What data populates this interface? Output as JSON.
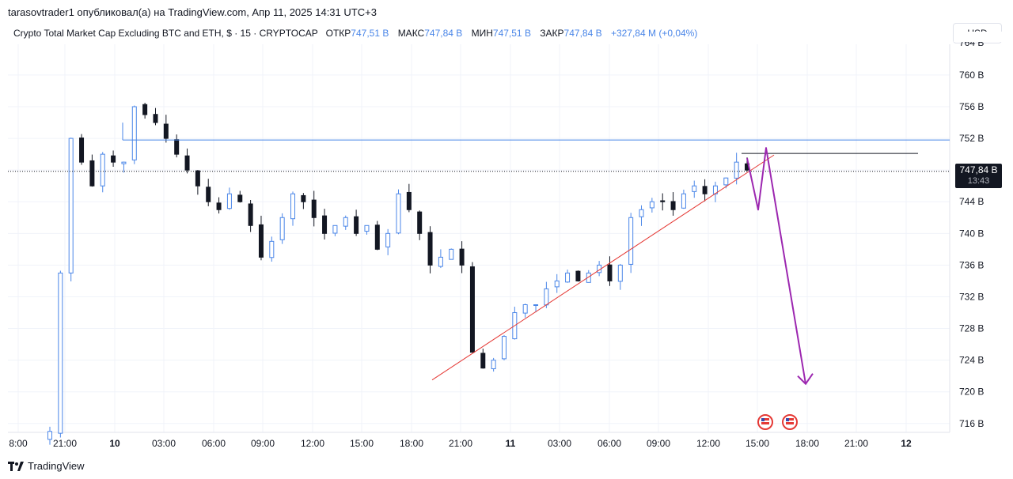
{
  "header": {
    "published": "tarasovtrader1 опубликовал(а) на TradingView.com, Апр 11, 2025 14:31 UTC+3"
  },
  "legend": {
    "symbol": "Crypto Total Market Cap Excluding BTC and ETH, $ · 15 · CRYPTOCAP",
    "open_label": "ОТКР",
    "open": "747,51 B",
    "high_label": "МАКС",
    "high": "747,84 B",
    "low_label": "МИН",
    "low": "747,51 B",
    "close_label": "ЗАКР",
    "close": "747,84 B",
    "change": "+327,84 M (+0,04%)"
  },
  "currency": "USD",
  "price_tag": {
    "price": "747,84 B",
    "countdown": "13:43"
  },
  "brand": "TradingView",
  "colors": {
    "up": "#4a86e8",
    "down": "#131722",
    "resistance": "#4a86e8",
    "trendline": "#e53935",
    "projection": "#9c27b0",
    "last_price_line": "#131722"
  },
  "chart_data": {
    "type": "candlestick",
    "interval": "15",
    "y_axis": {
      "ticks": [
        716,
        720,
        724,
        728,
        732,
        736,
        740,
        744,
        748,
        752,
        756,
        760
      ],
      "tick_labels": [
        "716 B",
        "720 B",
        "724 B",
        "728 B",
        "732 B",
        "736 B",
        "740 B",
        "744 B",
        "748 B",
        "752 B",
        "756 B",
        "760 B"
      ],
      "range": [
        714,
        764
      ],
      "unit": "B"
    },
    "x_axis": {
      "tick_labels": [
        "8:00",
        "21:00",
        "10",
        "03:00",
        "06:00",
        "09:00",
        "12:00",
        "15:00",
        "18:00",
        "21:00",
        "11",
        "03:00",
        "06:00",
        "09:00",
        "12:00",
        "15:00",
        "18:00",
        "21:00",
        "12"
      ],
      "bold": [
        "10",
        "11",
        "12"
      ]
    },
    "close_series_approx": [
      715,
      735,
      752,
      749,
      746,
      750,
      749,
      749,
      756,
      755,
      754,
      752,
      750,
      748,
      746,
      744,
      743,
      745,
      744,
      741,
      737,
      739,
      742,
      745,
      744,
      742,
      740,
      741,
      742,
      740,
      741,
      738,
      740,
      745,
      743,
      740,
      736,
      737,
      738,
      736,
      725,
      723,
      724,
      727,
      730,
      731,
      731,
      733,
      734,
      735,
      734,
      735,
      736,
      734,
      736,
      742,
      743,
      744,
      744,
      743,
      745,
      746,
      745,
      746,
      747,
      749,
      748
    ],
    "annotations": [
      {
        "type": "horizontal_line",
        "price": 751.8,
        "label": "resistance"
      },
      {
        "type": "trend_line",
        "from": "18:30 day 10",
        "to": "14:00 day 11",
        "price_from": 721.5,
        "price_to": 749
      },
      {
        "type": "horizontal_line",
        "price": 750.1,
        "label": "short level"
      },
      {
        "type": "projection_path",
        "points_price": [
          749.5,
          743.0,
          750.8,
          721.0
        ]
      }
    ],
    "last_price": 747.84,
    "events": [
      "us-flag-event",
      "us-flag-event"
    ]
  }
}
